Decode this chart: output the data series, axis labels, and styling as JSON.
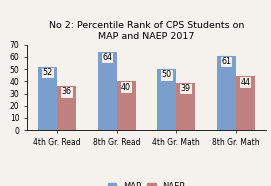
{
  "title": "No 2: Percentile Rank of CPS Students on\nMAP and NAEP 2017",
  "categories": [
    "4th Gr. Read",
    "8th Gr. Read",
    "4th Gr. Math",
    "8th Gr. Math"
  ],
  "map_values": [
    52,
    64,
    50,
    61
  ],
  "naep_values": [
    36,
    40,
    39,
    44
  ],
  "map_color": "#7B9FCC",
  "naep_color": "#C08080",
  "ylim": [
    0,
    70
  ],
  "yticks": [
    0,
    10,
    20,
    30,
    40,
    50,
    60,
    70
  ],
  "bar_width": 0.32,
  "title_fontsize": 6.8,
  "tick_fontsize": 5.5,
  "label_fontsize": 5.8,
  "legend_fontsize": 6.0,
  "background_color": "#f5f2ee"
}
